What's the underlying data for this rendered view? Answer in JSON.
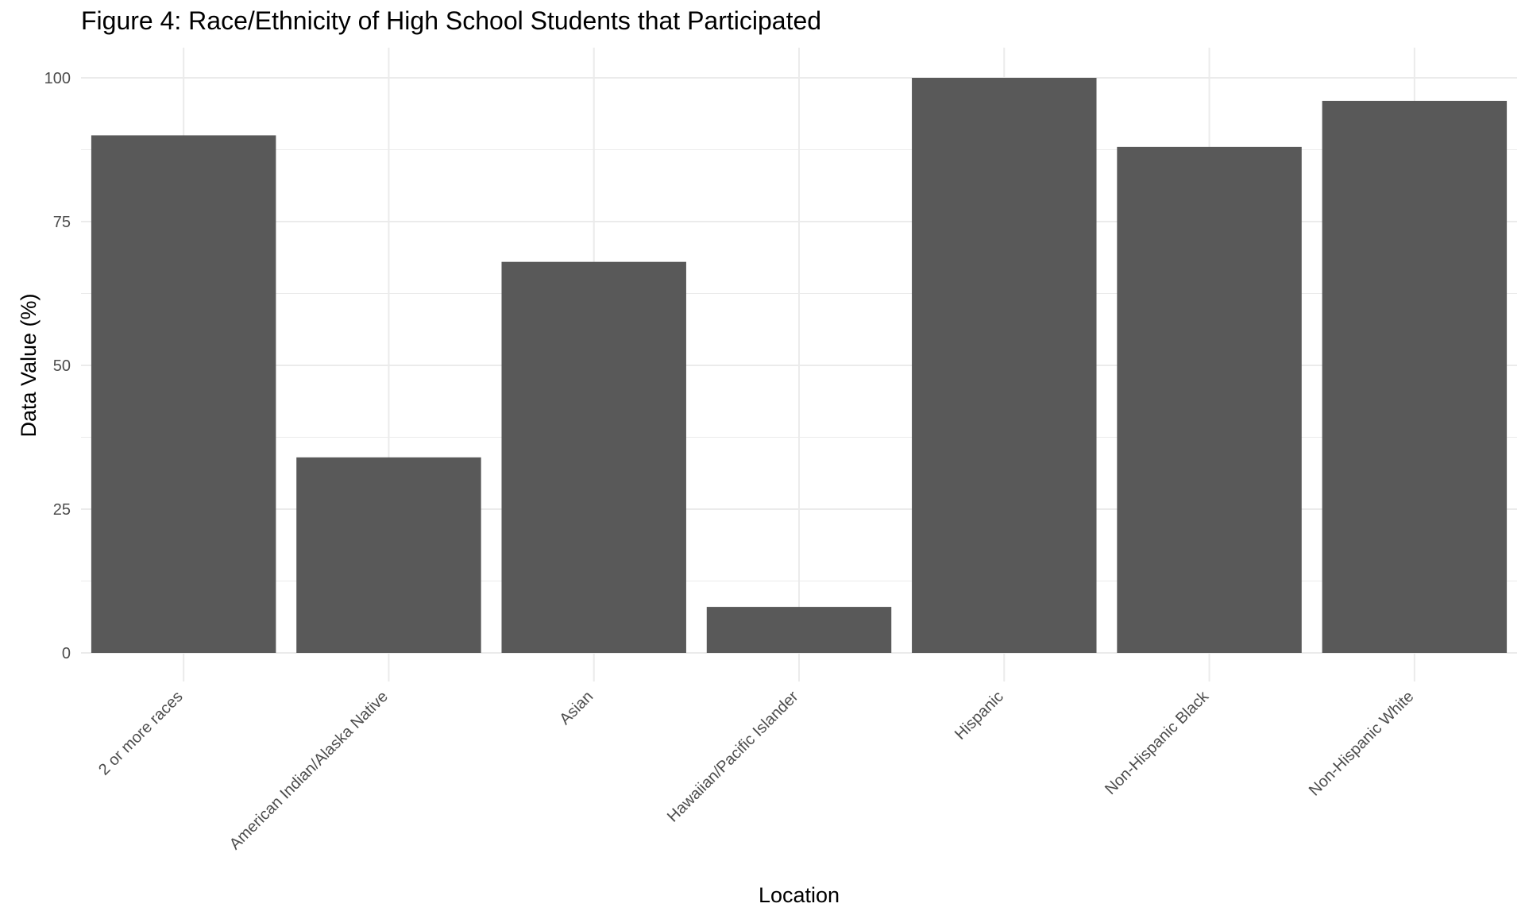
{
  "chart_data": {
    "type": "bar",
    "title": "Figure 4: Race/Ethnicity of High School Students that Participated",
    "xlabel": "Location",
    "ylabel": "Data Value (%)",
    "categories": [
      "2 or more races",
      "American Indian/Alaska Native",
      "Asian",
      "Hawaiian/Pacific Islander",
      "Hispanic",
      "Non-Hispanic Black",
      "Non-Hispanic White"
    ],
    "values": [
      90,
      34,
      68,
      8,
      100,
      88,
      96
    ],
    "ylim": [
      0,
      100
    ],
    "yticks": [
      0,
      25,
      50,
      75,
      100
    ],
    "grid": true,
    "legend": "none",
    "bar_color": "#595959",
    "grid_color": "#ebebeb"
  }
}
